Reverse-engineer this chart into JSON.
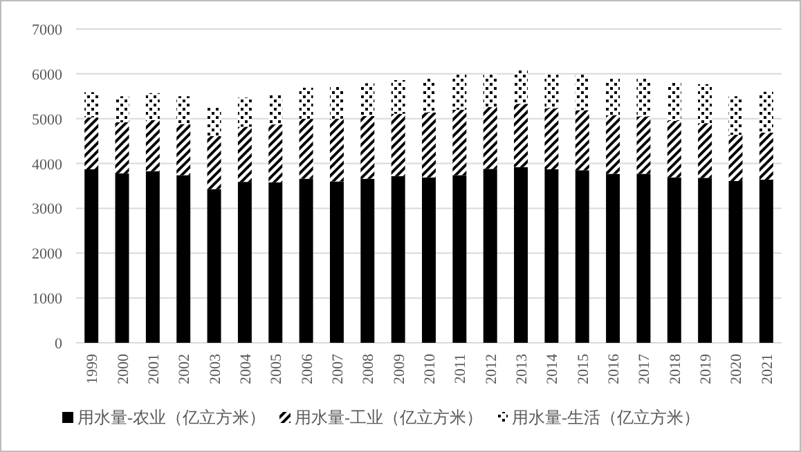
{
  "chart_data": {
    "type": "bar",
    "stacked": true,
    "categories": [
      "1999",
      "2000",
      "2001",
      "2002",
      "2003",
      "2004",
      "2005",
      "2006",
      "2007",
      "2008",
      "2009",
      "2010",
      "2011",
      "2012",
      "2013",
      "2014",
      "2015",
      "2016",
      "2017",
      "2018",
      "2019",
      "2020",
      "2021"
    ],
    "series": [
      {
        "name": "用水量-农业（亿立方米）",
        "color": "#000000",
        "values": [
          3870,
          3780,
          3830,
          3740,
          3430,
          3590,
          3580,
          3660,
          3600,
          3660,
          3720,
          3690,
          3740,
          3880,
          3920,
          3870,
          3850,
          3770,
          3770,
          3690,
          3680,
          3610,
          3640
        ]
      },
      {
        "name": "用水量-工业（亿立方米）",
        "color": "#000000",
        "values": [
          1160,
          1140,
          1140,
          1140,
          1180,
          1230,
          1290,
          1340,
          1400,
          1400,
          1390,
          1450,
          1460,
          1380,
          1410,
          1360,
          1340,
          1310,
          1280,
          1260,
          1220,
          1030,
          1050
        ]
      },
      {
        "name": "用水量-生活（亿立方米）",
        "color": "#000000",
        "values": [
          560,
          580,
          600,
          620,
          630,
          650,
          680,
          690,
          710,
          730,
          750,
          770,
          790,
          740,
          750,
          770,
          790,
          820,
          840,
          860,
          870,
          860,
          910
        ]
      }
    ],
    "ylim": [
      0,
      7000
    ],
    "yticks": [
      0,
      1000,
      2000,
      3000,
      4000,
      5000,
      6000,
      7000
    ],
    "grid": "y",
    "legend": "bottom"
  }
}
